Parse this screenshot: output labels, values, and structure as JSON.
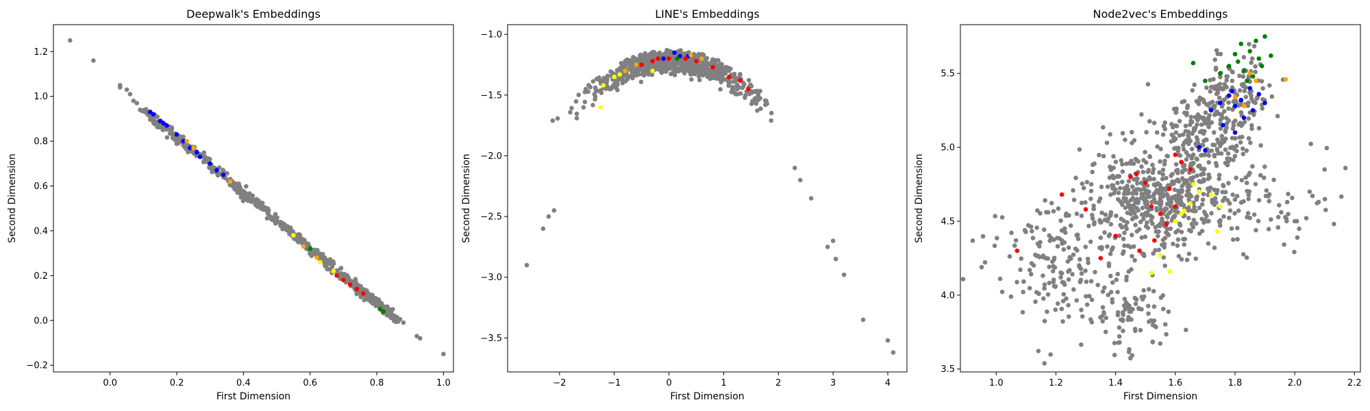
{
  "chart_data": [
    {
      "type": "scatter",
      "title": "Deepwalk's Embeddings",
      "xlabel": "First Dimension",
      "ylabel": "Second Dimension",
      "xlim": [
        -0.17,
        1.03
      ],
      "ylim": [
        -0.23,
        1.32
      ],
      "xticks": [
        "0.0",
        "0.2",
        "0.4",
        "0.6",
        "0.8",
        "1.0"
      ],
      "yticks": [
        "−0.2",
        "0.0",
        "0.2",
        "0.4",
        "0.6",
        "0.8",
        "1.0",
        "1.2"
      ],
      "grid": false,
      "gray_cloud": {
        "shape": "line",
        "from": [
          0.1,
          0.94
        ],
        "to": [
          0.87,
          -0.01
        ],
        "perp_spread": 0.008,
        "count": 620,
        "outliers": [
          [
            -0.12,
            1.25
          ],
          [
            -0.05,
            1.16
          ],
          [
            0.03,
            1.05
          ],
          [
            0.03,
            1.04
          ],
          [
            0.05,
            1.03
          ],
          [
            0.06,
            1.01
          ],
          [
            0.07,
            0.98
          ],
          [
            0.08,
            0.97
          ],
          [
            0.09,
            0.94
          ],
          [
            0.88,
            -0.01
          ],
          [
            0.92,
            -0.07
          ],
          [
            0.93,
            -0.08
          ],
          [
            1.0,
            -0.15
          ]
        ]
      },
      "series": [
        {
          "color": "#0000ff",
          "points": [
            [
              0.12,
              0.93
            ],
            [
              0.13,
              0.92
            ],
            [
              0.15,
              0.89
            ],
            [
              0.17,
              0.87
            ],
            [
              0.2,
              0.83
            ],
            [
              0.22,
              0.8
            ],
            [
              0.26,
              0.75
            ],
            [
              0.27,
              0.73
            ],
            [
              0.3,
              0.7
            ],
            [
              0.32,
              0.67
            ],
            [
              0.34,
              0.65
            ],
            [
              0.16,
              0.88
            ],
            [
              0.24,
              0.77
            ]
          ]
        },
        {
          "color": "#ffa500",
          "points": [
            [
              0.23,
              0.8
            ],
            [
              0.25,
              0.77
            ],
            [
              0.36,
              0.62
            ],
            [
              0.62,
              0.28
            ],
            [
              0.58,
              0.33
            ],
            [
              0.7,
              0.18
            ]
          ]
        },
        {
          "color": "#ff0000",
          "points": [
            [
              0.68,
              0.2
            ],
            [
              0.72,
              0.16
            ],
            [
              0.74,
              0.14
            ],
            [
              0.76,
              0.12
            ],
            [
              0.7,
              0.18
            ]
          ]
        },
        {
          "color": "#008000",
          "points": [
            [
              0.6,
              0.32
            ],
            [
              0.81,
              0.05
            ],
            [
              0.82,
              0.04
            ]
          ]
        },
        {
          "color": "#ffff00",
          "points": [
            [
              0.55,
              0.38
            ],
            [
              0.63,
              0.26
            ],
            [
              0.67,
              0.22
            ]
          ]
        }
      ]
    },
    {
      "type": "scatter",
      "title": "LINE's Embeddings",
      "xlabel": "First Dimension",
      "ylabel": "Second Dimension",
      "xlim": [
        -2.95,
        4.35
      ],
      "ylim": [
        -3.78,
        -0.92
      ],
      "xticks": [
        "−2",
        "−1",
        "0",
        "1",
        "2",
        "3",
        "4"
      ],
      "yticks": [
        "−3.5",
        "−3.0",
        "−2.5",
        "−2.0",
        "−1.5",
        "−1.0"
      ],
      "grid": false,
      "gray_cloud": {
        "shape": "parabola",
        "vertex": [
          0.05,
          -1.2
        ],
        "curvature": -0.12,
        "x_range": [
          -2.2,
          1.9
        ],
        "count": 760,
        "outliers": [
          [
            -2.6,
            -2.9
          ],
          [
            -2.3,
            -2.6
          ],
          [
            -2.2,
            -2.5
          ],
          [
            -2.1,
            -2.45
          ],
          [
            2.3,
            -2.1
          ],
          [
            2.4,
            -2.2
          ],
          [
            2.6,
            -2.35
          ],
          [
            2.9,
            -2.75
          ],
          [
            3.0,
            -2.7
          ],
          [
            3.05,
            -2.85
          ],
          [
            3.2,
            -2.98
          ],
          [
            3.55,
            -3.35
          ],
          [
            4.0,
            -3.52
          ],
          [
            4.1,
            -3.62
          ]
        ]
      },
      "series": [
        {
          "color": "#0000ff",
          "points": [
            [
              0.1,
              -1.15
            ],
            [
              0.2,
              -1.18
            ],
            [
              -0.1,
              -1.2
            ],
            [
              0.35,
              -1.18
            ]
          ]
        },
        {
          "color": "#ff0000",
          "points": [
            [
              -0.5,
              -1.25
            ],
            [
              -0.3,
              -1.22
            ],
            [
              0.0,
              -1.2
            ],
            [
              0.3,
              -1.2
            ],
            [
              0.5,
              -1.22
            ],
            [
              0.8,
              -1.27
            ],
            [
              1.1,
              -1.35
            ],
            [
              1.3,
              -1.38
            ],
            [
              1.45,
              -1.45
            ],
            [
              -0.2,
              -1.2
            ]
          ]
        },
        {
          "color": "#ffa500",
          "points": [
            [
              -0.8,
              -1.3
            ],
            [
              -0.6,
              -1.25
            ],
            [
              0.4,
              -1.17
            ],
            [
              0.6,
              -1.2
            ]
          ]
        },
        {
          "color": "#ffff00",
          "points": [
            [
              -1.0,
              -1.35
            ],
            [
              -1.2,
              -1.42
            ],
            [
              -0.9,
              -1.33
            ],
            [
              -0.3,
              -1.3
            ],
            [
              -1.25,
              -1.6
            ]
          ]
        },
        {
          "color": "#008000",
          "points": [
            [
              0.15,
              -1.2
            ]
          ]
        }
      ]
    },
    {
      "type": "scatter",
      "title": "Node2vec's Embeddings",
      "xlabel": "First Dimension",
      "ylabel": "Second Dimension",
      "xlim": [
        0.88,
        2.22
      ],
      "ylim": [
        3.48,
        5.83
      ],
      "xticks": [
        "1.0",
        "1.2",
        "1.4",
        "1.6",
        "1.8",
        "2.0",
        "2.2"
      ],
      "yticks": [
        "3.5",
        "4.0",
        "4.5",
        "5.0",
        "5.5"
      ],
      "grid": false,
      "gray_cloud": {
        "shape": "blob",
        "centers": [
          [
            1.55,
            4.65
          ],
          [
            1.7,
            5.1
          ],
          [
            1.8,
            5.4
          ],
          [
            1.2,
            4.2
          ],
          [
            1.45,
            3.85
          ],
          [
            1.9,
            4.6
          ]
        ],
        "spreads": [
          [
            0.12,
            0.18
          ],
          [
            0.08,
            0.15
          ],
          [
            0.06,
            0.12
          ],
          [
            0.1,
            0.22
          ],
          [
            0.06,
            0.13
          ],
          [
            0.12,
            0.15
          ]
        ],
        "counts": [
          520,
          220,
          110,
          170,
          90,
          60
        ],
        "outliers": [
          [
            2.1,
            4.85
          ],
          [
            2.17,
            4.86
          ],
          [
            2.05,
            4.7
          ],
          [
            2.08,
            4.63
          ],
          [
            2.0,
            4.5
          ],
          [
            1.93,
            4.78
          ]
        ]
      },
      "series": [
        {
          "color": "#008000",
          "points": [
            [
              1.82,
              5.7
            ],
            [
              1.85,
              5.65
            ],
            [
              1.88,
              5.6
            ],
            [
              1.9,
              5.75
            ],
            [
              1.78,
              5.55
            ],
            [
              1.83,
              5.52
            ],
            [
              1.86,
              5.48
            ],
            [
              1.92,
              5.62
            ],
            [
              1.8,
              5.63
            ],
            [
              1.87,
              5.72
            ],
            [
              1.66,
              5.57
            ],
            [
              1.7,
              5.45
            ],
            [
              1.75,
              5.5
            ],
            [
              1.84,
              5.45
            ],
            [
              1.89,
              5.55
            ],
            [
              1.81,
              5.58
            ]
          ]
        },
        {
          "color": "#0000ff",
          "points": [
            [
              1.75,
              5.3
            ],
            [
              1.78,
              5.35
            ],
            [
              1.8,
              5.28
            ],
            [
              1.82,
              5.32
            ],
            [
              1.85,
              5.4
            ],
            [
              1.88,
              5.36
            ],
            [
              1.72,
              5.25
            ],
            [
              1.9,
              5.3
            ],
            [
              1.83,
              5.2
            ],
            [
              1.76,
              5.15
            ],
            [
              1.8,
              5.1
            ],
            [
              1.7,
              4.98
            ],
            [
              1.68,
              5.0
            ],
            [
              1.86,
              5.25
            ],
            [
              1.79,
              5.38
            ]
          ]
        },
        {
          "color": "#ffa500",
          "points": [
            [
              1.85,
              5.5
            ],
            [
              1.87,
              5.45
            ],
            [
              1.97,
              5.46
            ],
            [
              1.8,
              5.34
            ],
            [
              1.83,
              5.28
            ]
          ]
        },
        {
          "color": "#ff0000",
          "points": [
            [
              1.22,
              4.68
            ],
            [
              1.3,
              4.58
            ],
            [
              1.35,
              4.25
            ],
            [
              1.4,
              4.4
            ],
            [
              1.45,
              4.8
            ],
            [
              1.47,
              4.82
            ],
            [
              1.5,
              4.76
            ],
            [
              1.52,
              4.6
            ],
            [
              1.55,
              4.55
            ],
            [
              1.57,
              4.48
            ],
            [
              1.6,
              4.6
            ],
            [
              1.62,
              4.9
            ],
            [
              1.65,
              4.85
            ],
            [
              1.07,
              4.3
            ],
            [
              1.48,
              4.3
            ],
            [
              1.53,
              4.37
            ],
            [
              1.58,
              4.72
            ],
            [
              1.6,
              4.95
            ]
          ]
        },
        {
          "color": "#ffff00",
          "points": [
            [
              1.55,
              4.27
            ],
            [
              1.52,
              4.15
            ],
            [
              1.58,
              4.16
            ],
            [
              1.6,
              4.5
            ],
            [
              1.62,
              4.55
            ],
            [
              1.65,
              4.62
            ],
            [
              1.68,
              4.7
            ],
            [
              1.72,
              4.68
            ],
            [
              1.75,
              4.6
            ],
            [
              1.74,
              4.43
            ],
            [
              1.63,
              4.57
            ],
            [
              1.66,
              4.75
            ]
          ]
        }
      ]
    }
  ]
}
